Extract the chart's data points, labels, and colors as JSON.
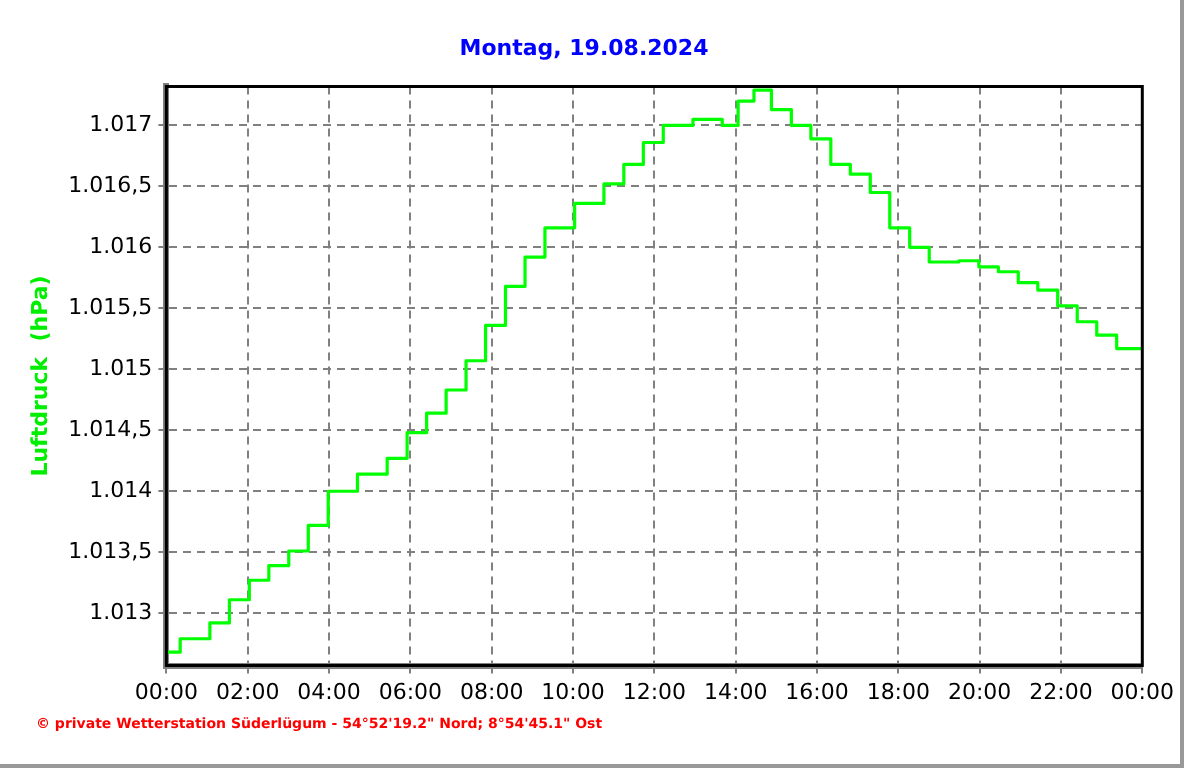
{
  "chart_data": {
    "type": "step",
    "title": "Montag, 19.08.2024",
    "ylabel": "Luftdruck  (hPa)",
    "annotations": [
      "© private Wetterstation Süderlügum  -  54°52'19.2\" Nord; 8°54'45.1\" Ost"
    ],
    "series": [
      {
        "color": "#00ff00",
        "x": [
          0,
          0.34,
          1.07,
          1.55,
          2.04,
          2.52,
          3.01,
          3.49,
          3.98,
          4.7,
          5.43,
          5.92,
          6.4,
          6.88,
          7.37,
          7.85,
          8.34,
          8.82,
          9.31,
          10.04,
          10.76,
          11.25,
          11.73,
          12.22,
          12.95,
          13.67,
          14.06,
          14.45,
          14.88,
          15.37,
          15.85,
          16.34,
          16.82,
          17.31,
          17.79,
          18.28,
          18.76,
          19.49,
          19.98,
          20.46,
          20.95,
          21.43,
          21.92,
          22.4,
          22.88,
          23.37,
          24
        ],
        "values": [
          1012.68,
          1012.79,
          1012.92,
          1013.11,
          1013.27,
          1013.39,
          1013.51,
          1013.72,
          1014.0,
          1014.14,
          1014.27,
          1014.48,
          1014.64,
          1014.83,
          1015.07,
          1015.36,
          1015.68,
          1015.92,
          1016.16,
          1016.36,
          1016.52,
          1016.68,
          1016.86,
          1017.0,
          1017.05,
          1017.0,
          1017.2,
          1017.29,
          1017.13,
          1017.0,
          1016.89,
          1016.68,
          1016.6,
          1016.45,
          1016.16,
          1016.0,
          1015.88,
          1015.89,
          1015.84,
          1015.8,
          1015.71,
          1015.65,
          1015.52,
          1015.39,
          1015.28,
          1015.17,
          1015.17
        ]
      }
    ],
    "xlim": [
      0,
      24
    ],
    "xticks": [
      {
        "value": 0,
        "label": "00:00"
      },
      {
        "value": 2,
        "label": "02:00"
      },
      {
        "value": 4,
        "label": "04:00"
      },
      {
        "value": 6,
        "label": "06:00"
      },
      {
        "value": 8,
        "label": "08:00"
      },
      {
        "value": 10,
        "label": "10:00"
      },
      {
        "value": 12,
        "label": "12:00"
      },
      {
        "value": 14,
        "label": "14:00"
      },
      {
        "value": 16,
        "label": "16:00"
      },
      {
        "value": 18,
        "label": "18:00"
      },
      {
        "value": 20,
        "label": "20:00"
      },
      {
        "value": 22,
        "label": "22:00"
      },
      {
        "value": 24,
        "label": "00:00"
      }
    ],
    "ylim": [
      1012.57,
      1017.32
    ],
    "yticks": [
      {
        "value": 1013,
        "label": "1.013"
      },
      {
        "value": 1013.5,
        "label": "1.013,5"
      },
      {
        "value": 1014,
        "label": "1.014"
      },
      {
        "value": 1014.5,
        "label": "1.014,5"
      },
      {
        "value": 1015,
        "label": "1.015"
      },
      {
        "value": 1015.5,
        "label": "1.015,5"
      },
      {
        "value": 1016,
        "label": "1.016"
      },
      {
        "value": 1016.5,
        "label": "1.016,5"
      },
      {
        "value": 1017,
        "label": "1.017"
      }
    ],
    "grid": true,
    "legend": false,
    "marker": "none",
    "line_style": "solid"
  }
}
